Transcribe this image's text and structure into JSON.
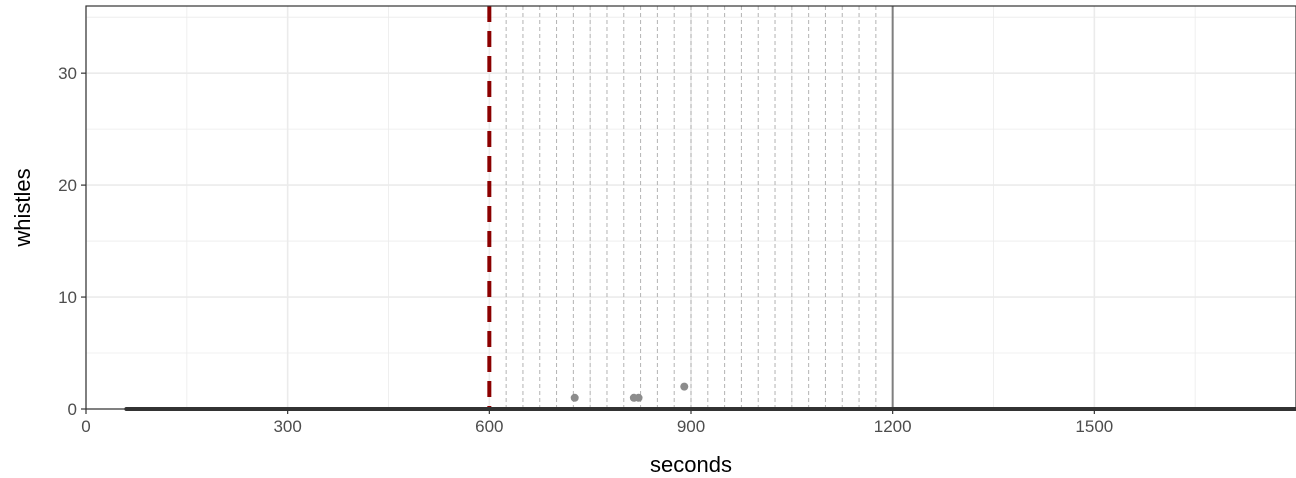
{
  "chart_data": {
    "type": "scatter",
    "title": "",
    "xlabel": "seconds",
    "ylabel": "whistles",
    "xlim": [
      0,
      1800
    ],
    "ylim": [
      0,
      36
    ],
    "x_ticks": [
      0,
      300,
      600,
      900,
      1200,
      1500
    ],
    "y_ticks": [
      0,
      10,
      20,
      30
    ],
    "grid": true,
    "series": [
      {
        "values": [
          {
            "x": 727,
            "y": 1
          },
          {
            "x": 815,
            "y": 1
          },
          {
            "x": 822,
            "y": 1
          },
          {
            "x": 890,
            "y": 2
          }
        ]
      }
    ],
    "baseline": {
      "y": 0,
      "x_start": 60,
      "x_end": 1800
    },
    "reference_lines": {
      "red_dashed_x": 600,
      "solid_x": 1200,
      "dashed_grey_x": [
        625,
        650,
        675,
        700,
        725,
        750,
        775,
        800,
        825,
        850,
        875,
        900,
        925,
        950,
        975,
        1000,
        1025,
        1050,
        1075,
        1100,
        1125,
        1150,
        1175
      ]
    },
    "colors": {
      "point": "#8c8c8c",
      "red_line": "#8b0000",
      "solid_line": "#7f7f7f",
      "dashed_grey": "#b3b3b3",
      "baseline": "#333333",
      "grid": "#ebebeb"
    }
  }
}
